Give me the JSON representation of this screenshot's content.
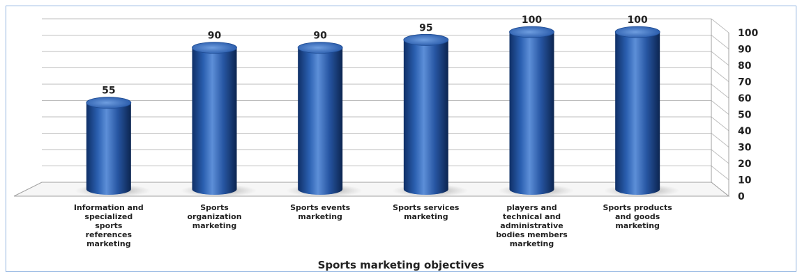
{
  "chart_data": {
    "type": "bar",
    "title": "",
    "xlabel": "Sports marketing objectives",
    "ylabel": "",
    "ylim": [
      0,
      100
    ],
    "yticks": [
      0,
      10,
      20,
      30,
      40,
      50,
      60,
      70,
      80,
      90,
      100
    ],
    "grid": true,
    "bar_shape": "cylinder",
    "bar_color": "#2a5fb0",
    "categories": [
      [
        "Information and",
        "specialized",
        "sports",
        "references",
        "marketing"
      ],
      [
        "Sports",
        "organization",
        "marketing"
      ],
      [
        "Sports events",
        "marketing"
      ],
      [
        "Sports services",
        "marketing"
      ],
      [
        "players and",
        "technical and",
        "administrative",
        "bodies members",
        "marketing"
      ],
      [
        "Sports products",
        "and goods",
        "marketing"
      ]
    ],
    "values": [
      55,
      90,
      90,
      95,
      100,
      100
    ]
  }
}
